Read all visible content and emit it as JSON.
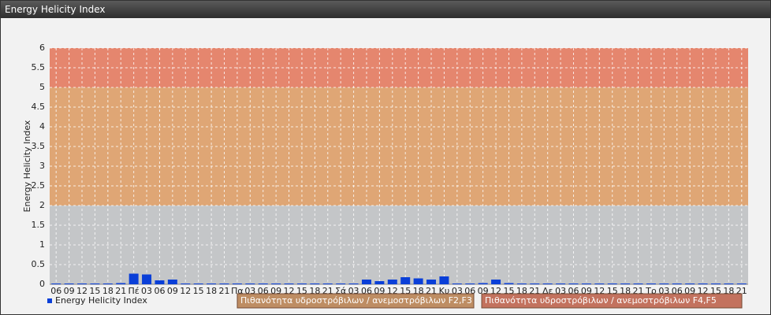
{
  "chart_data": {
    "type": "bar",
    "title": "Energy Helicity Index",
    "y_label": "Energy Helicity Index",
    "categories": [
      "06",
      "09",
      "12",
      "15",
      "18",
      "21",
      "Πέ",
      "03",
      "06",
      "09",
      "12",
      "15",
      "18",
      "21",
      "Πα",
      "03",
      "06",
      "09",
      "12",
      "15",
      "18",
      "21",
      "Σά",
      "03",
      "06",
      "09",
      "12",
      "15",
      "18",
      "21",
      "Κυ",
      "03",
      "06",
      "09",
      "12",
      "15",
      "18",
      "21",
      "Δε",
      "03",
      "06",
      "09",
      "12",
      "15",
      "18",
      "21",
      "Τρ",
      "03",
      "06",
      "09",
      "12",
      "15",
      "18",
      "21"
    ],
    "series": [
      {
        "name": "Energy Helicity Index",
        "color": "#0a3fd8",
        "values": [
          0.02,
          0.02,
          0.02,
          0.02,
          0.02,
          0.03,
          0.27,
          0.25,
          0.1,
          0.12,
          0.02,
          0.02,
          0.02,
          0.02,
          0.02,
          0.02,
          0.02,
          0.02,
          0.02,
          0.02,
          0.02,
          0.02,
          0.02,
          0.02,
          0.12,
          0.08,
          0.12,
          0.18,
          0.15,
          0.12,
          0.2,
          0.02,
          0.02,
          0.03,
          0.12,
          0.03,
          0.02,
          0.02,
          0.02,
          0.02,
          0.02,
          0.02,
          0.02,
          0.02,
          0.02,
          0.02,
          0.02,
          0.02,
          0.02,
          0.02,
          0.02,
          0.02,
          0.02,
          0.02
        ]
      }
    ],
    "ylim": [
      0,
      6
    ],
    "yticks": [
      0,
      0.5,
      1,
      1.5,
      2,
      2.5,
      3,
      3.5,
      4,
      4.5,
      5,
      5.5,
      6
    ],
    "grid": true,
    "bands": [
      {
        "from": 0,
        "to": 2,
        "color": "#c4c6c8"
      },
      {
        "from": 2,
        "to": 5,
        "color": "#dfa675",
        "label": "Πιθανότητα υδροστρόβιλων / ανεμοστρόβιλων F2,F3"
      },
      {
        "from": 5,
        "to": 6,
        "color": "#e5866e",
        "label": "Πιθανότητα υδροστρόβιλων / ανεμοστρόβιλων F4,F5"
      }
    ]
  }
}
